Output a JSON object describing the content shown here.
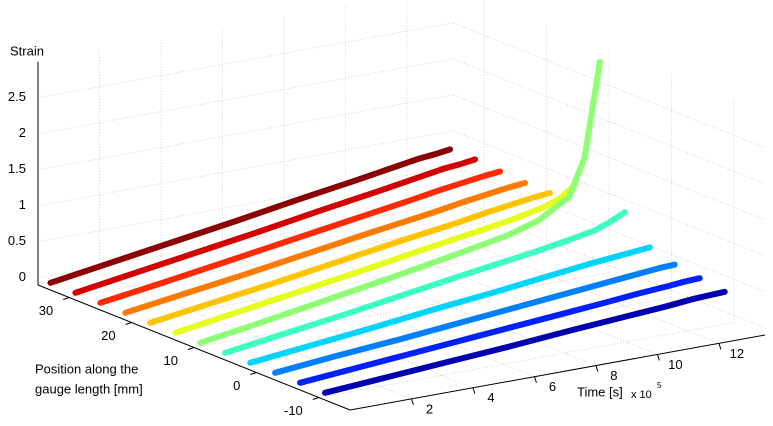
{
  "chart_data": {
    "type": "line3d",
    "zlabel": "Strain",
    "ylabel_lines": [
      "Position along the",
      "gauge length [mm]"
    ],
    "xlabel": "Time [s]",
    "x_multiplier": "x 10",
    "x_multiplier_exponent": "5",
    "x": [
      0,
      2,
      4,
      6,
      8,
      10,
      11,
      12,
      12.5,
      13
    ],
    "xlim": [
      0,
      13.5
    ],
    "xticks": [
      2,
      4,
      6,
      8,
      10,
      12
    ],
    "ylim": [
      -15,
      35
    ],
    "yticks": [
      30,
      20,
      10,
      0,
      -10
    ],
    "zlim": [
      -0.1,
      3
    ],
    "zticks": [
      0,
      0.5,
      1,
      1.5,
      2,
      2.5
    ],
    "grid": true,
    "series": [
      {
        "position": 33,
        "color": "#8b0000",
        "values": [
          0,
          0.13,
          0.26,
          0.39,
          0.53,
          0.66,
          0.73,
          0.8,
          0.82,
          0.85
        ]
      },
      {
        "position": 29,
        "color": "#d40000",
        "values": [
          0,
          0.13,
          0.26,
          0.39,
          0.53,
          0.66,
          0.73,
          0.8,
          0.82,
          0.85
        ]
      },
      {
        "position": 25,
        "color": "#ff2a00",
        "values": [
          0,
          0.12,
          0.25,
          0.38,
          0.51,
          0.64,
          0.71,
          0.77,
          0.8,
          0.82
        ]
      },
      {
        "position": 21,
        "color": "#ff7a00",
        "values": [
          0,
          0.12,
          0.24,
          0.37,
          0.5,
          0.62,
          0.69,
          0.75,
          0.78,
          0.8
        ]
      },
      {
        "position": 17,
        "color": "#ffc400",
        "values": [
          0,
          0.12,
          0.24,
          0.37,
          0.5,
          0.62,
          0.69,
          0.75,
          0.78,
          0.8
        ]
      },
      {
        "position": 13,
        "color": "#e6ff1a",
        "values": [
          0,
          0.13,
          0.26,
          0.39,
          0.53,
          0.66,
          0.73,
          0.82,
          0.9,
          1.05
        ]
      },
      {
        "position": 9,
        "color": "#8cff73",
        "values": [
          0,
          0.13,
          0.27,
          0.41,
          0.56,
          0.72,
          0.85,
          1.1,
          1.6,
          2.9
        ]
      },
      {
        "position": 5,
        "color": "#3dffc2",
        "values": [
          0,
          0.12,
          0.24,
          0.37,
          0.5,
          0.62,
          0.69,
          0.77,
          0.85,
          0.95
        ]
      },
      {
        "position": 1,
        "color": "#00d4ff",
        "values": [
          0,
          0.09,
          0.18,
          0.28,
          0.37,
          0.47,
          0.52,
          0.56,
          0.58,
          0.6
        ]
      },
      {
        "position": -3,
        "color": "#0080ff",
        "values": [
          0,
          0.08,
          0.15,
          0.23,
          0.31,
          0.39,
          0.43,
          0.47,
          0.49,
          0.5
        ]
      },
      {
        "position": -7,
        "color": "#0020ff",
        "values": [
          0,
          0.07,
          0.14,
          0.21,
          0.28,
          0.35,
          0.39,
          0.42,
          0.44,
          0.45
        ]
      },
      {
        "position": -11,
        "color": "#0000b0",
        "values": [
          0,
          0.06,
          0.12,
          0.18,
          0.25,
          0.31,
          0.34,
          0.38,
          0.39,
          0.4
        ]
      }
    ]
  }
}
